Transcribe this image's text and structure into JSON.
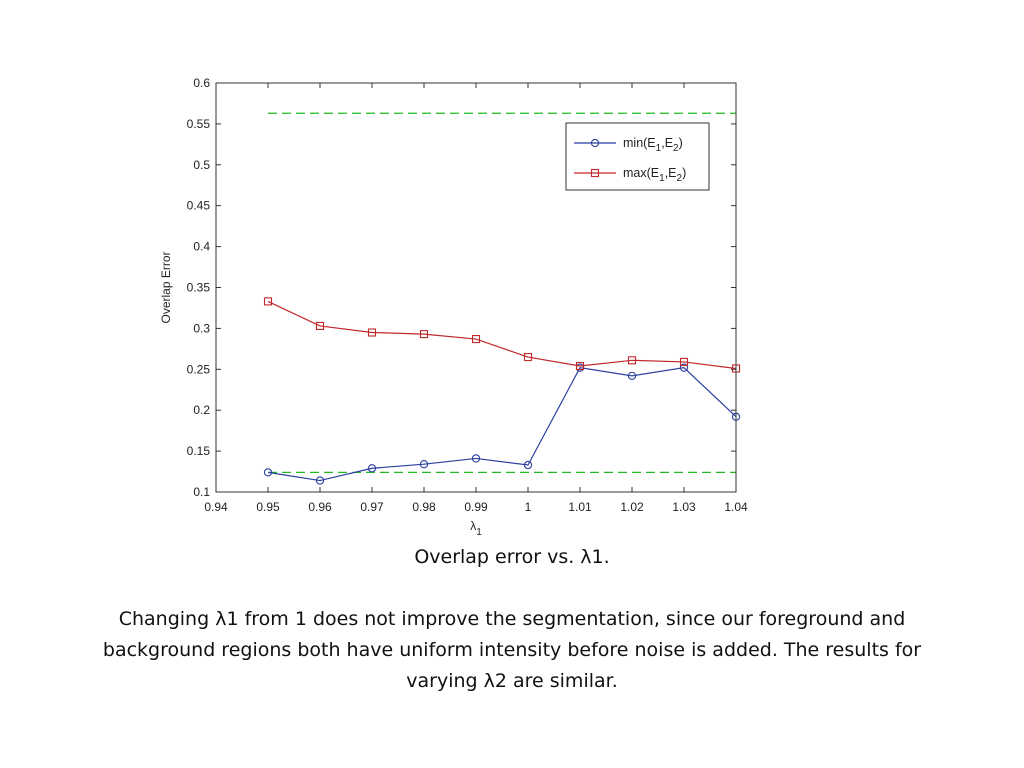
{
  "chart_data": {
    "type": "line",
    "x": [
      0.95,
      0.96,
      0.97,
      0.98,
      0.99,
      1.0,
      1.01,
      1.02,
      1.03,
      1.04
    ],
    "xlim": [
      0.94,
      1.04
    ],
    "ylim": [
      0.1,
      0.6
    ],
    "xticks": [
      "0.94",
      "0.95",
      "0.96",
      "0.97",
      "0.98",
      "0.99",
      "1",
      "1.01",
      "1.02",
      "1.03",
      "1.04"
    ],
    "yticks": [
      "0.1",
      "0.15",
      "0.2",
      "0.25",
      "0.3",
      "0.35",
      "0.4",
      "0.45",
      "0.5",
      "0.55",
      "0.6"
    ],
    "xlabel": "λ",
    "xlabel_sub": "1",
    "ylabel": "Overlap Error",
    "grid": false,
    "legend_position": "top-right",
    "series": [
      {
        "name": "min(E1,E2)",
        "color": "#2b3fa0",
        "marker": "circle",
        "values": [
          0.124,
          0.114,
          0.129,
          0.134,
          0.141,
          0.133,
          0.252,
          0.242,
          0.252,
          0.192
        ]
      },
      {
        "name": "max(E1,E2)",
        "color": "#c0282a",
        "marker": "square",
        "values": [
          0.333,
          0.303,
          0.295,
          0.293,
          0.287,
          0.265,
          0.254,
          0.261,
          0.259,
          0.251
        ]
      }
    ],
    "reference_lines": [
      {
        "y": 0.563,
        "xfrom": 0.95,
        "xto": 1.04,
        "color": "#22bb22",
        "style": "dashed"
      },
      {
        "y": 0.124,
        "xfrom": 0.95,
        "xto": 1.04,
        "color": "#22bb22",
        "style": "dashed"
      }
    ]
  },
  "caption": {
    "title": "Overlap error vs. λ1.",
    "body": "Changing λ1 from 1 does not improve the segmentation, since our foreground and background regions both have uniform intensity before noise is added. The results for varying λ2 are similar."
  }
}
